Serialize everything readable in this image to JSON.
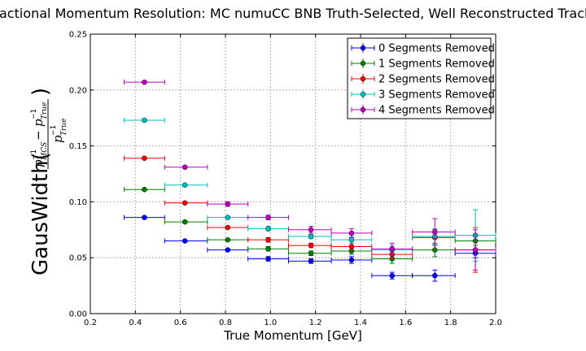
{
  "chart_data": {
    "type": "scatter",
    "title": "Fractional Momentum Resolution: MC numuCC BNB Truth-Selected, Well Reconstructed Tracks",
    "xlabel": "True Momentum [GeV]",
    "ylabel": {
      "prefix": "GausWidth(",
      "suffix": ")",
      "num_p": "p",
      "num_sub1": "MCS",
      "num_minus": " − ",
      "num_p2": "p",
      "num_sub2": "True",
      "exp": "−1",
      "den_p": "p",
      "den_sub": "True"
    },
    "xlim": [
      0.2,
      2.0
    ],
    "ylim": [
      0.0,
      0.25
    ],
    "x_ticks": [
      "0.2",
      "0.4",
      "0.6",
      "0.8",
      "1.0",
      "1.2",
      "1.4",
      "1.6",
      "1.8",
      "2.0"
    ],
    "y_ticks": [
      "0.00",
      "0.05",
      "0.10",
      "0.15",
      "0.20",
      "0.25"
    ],
    "grid": true,
    "legend_position": "top-right",
    "bin_edges": [
      0.35,
      0.53,
      0.72,
      0.9,
      1.08,
      1.27,
      1.45,
      1.63,
      1.82,
      2.0
    ],
    "x": [
      0.44,
      0.62,
      0.81,
      0.99,
      1.18,
      1.36,
      1.54,
      1.73,
      1.91
    ],
    "series": [
      {
        "name": "0 Segments Removed",
        "color": "#0000ff",
        "values": [
          0.086,
          0.065,
          0.057,
          0.049,
          0.047,
          0.048,
          0.034,
          0.034,
          0.054
        ],
        "yerr": [
          0.001,
          0.001,
          0.001,
          0.002,
          0.002,
          0.003,
          0.003,
          0.005,
          0.004
        ]
      },
      {
        "name": "1 Segments Removed",
        "color": "#008000",
        "values": [
          0.111,
          0.082,
          0.066,
          0.058,
          0.054,
          0.056,
          0.049,
          0.057,
          0.065
        ],
        "yerr": [
          0.001,
          0.001,
          0.001,
          0.002,
          0.002,
          0.003,
          0.004,
          0.006,
          0.004
        ]
      },
      {
        "name": "2 Segments Removed",
        "color": "#ff0000",
        "values": [
          0.139,
          0.099,
          0.077,
          0.066,
          0.061,
          0.06,
          0.053,
          0.068,
          0.057
        ],
        "yerr": [
          0.001,
          0.001,
          0.001,
          0.002,
          0.002,
          0.003,
          0.004,
          0.007,
          0.02
        ]
      },
      {
        "name": "3 Segments Removed",
        "color": "#00bfbf",
        "values": [
          0.173,
          0.115,
          0.086,
          0.076,
          0.069,
          0.066,
          0.057,
          0.069,
          0.07
        ],
        "yerr": [
          0.001,
          0.001,
          0.001,
          0.002,
          0.002,
          0.003,
          0.004,
          0.007,
          0.023
        ]
      },
      {
        "name": "4 Segments Removed",
        "color": "#bf00bf",
        "values": [
          0.207,
          0.131,
          0.098,
          0.086,
          0.075,
          0.072,
          0.058,
          0.073,
          0.057
        ],
        "yerr": [
          0.001,
          0.001,
          0.002,
          0.002,
          0.003,
          0.004,
          0.005,
          0.012,
          0.018
        ]
      }
    ]
  }
}
